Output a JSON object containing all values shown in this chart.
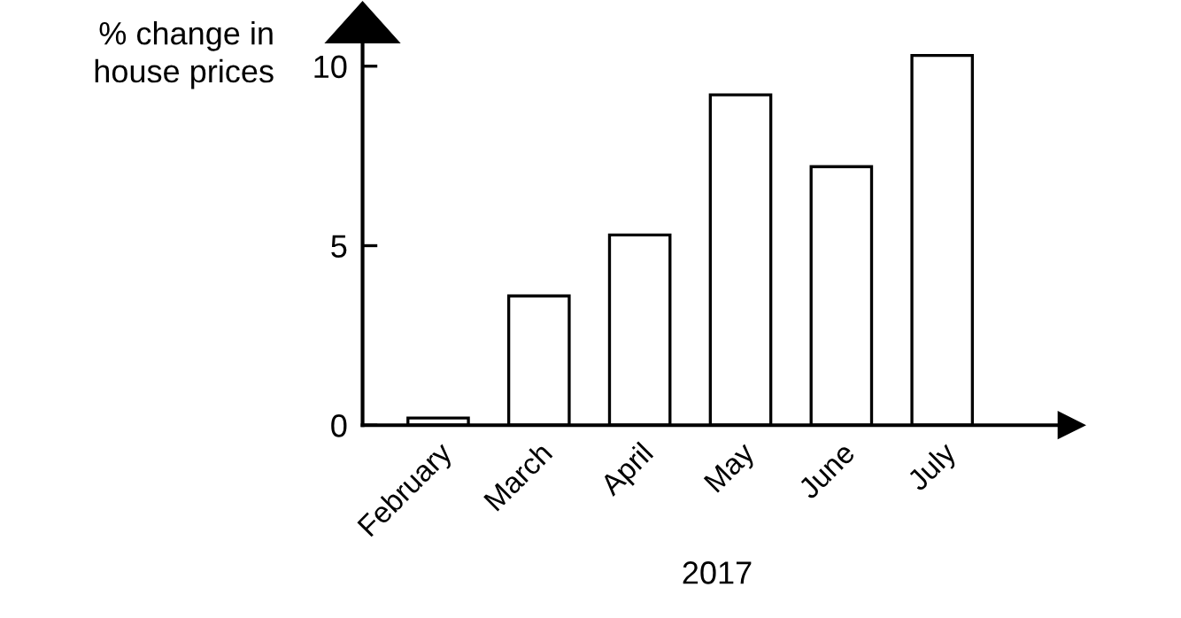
{
  "chart_data": {
    "type": "bar",
    "ylabel": "% change in\nhouse prices",
    "xlabel": "2017",
    "categories": [
      "February",
      "March",
      "April",
      "May",
      "June",
      "July"
    ],
    "values": [
      0.2,
      3.6,
      5.3,
      9.2,
      7.2,
      10.3
    ],
    "color": "#ffffff",
    "ylim": [
      0,
      11
    ],
    "yticks": [
      0,
      5,
      10
    ],
    "grid": false,
    "legend": false
  }
}
